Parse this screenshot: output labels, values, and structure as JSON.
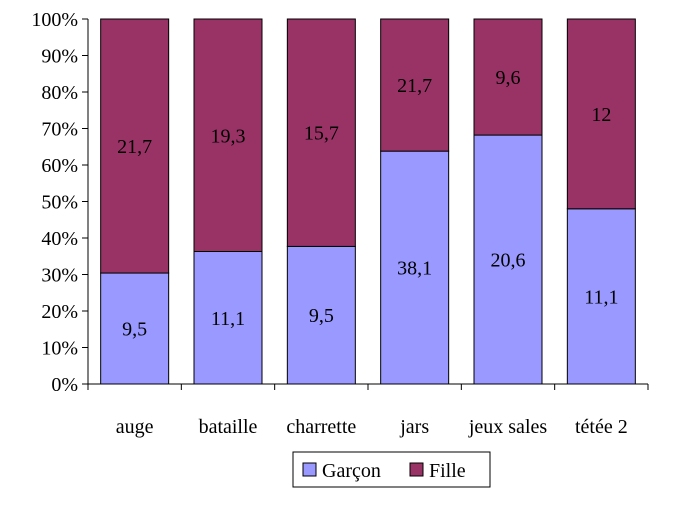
{
  "chart_data": {
    "type": "bar",
    "stacked": true,
    "normalized": true,
    "categories": [
      "auge",
      "bataille",
      "charrette",
      "jars",
      "jeux sales",
      "tétée 2"
    ],
    "series": [
      {
        "name": "Garçon",
        "color": "#9999ff",
        "values": [
          9.5,
          11.1,
          9.5,
          38.1,
          20.6,
          11.1
        ],
        "labels": [
          "9,5",
          "11,1",
          "9,5",
          "38,1",
          "20,6",
          "11,1"
        ],
        "share_percent": [
          30.4,
          36.3,
          37.7,
          63.8,
          68.2,
          48.0
        ]
      },
      {
        "name": "Fille",
        "color": "#993366",
        "values": [
          21.7,
          19.3,
          15.7,
          21.7,
          9.6,
          12
        ],
        "labels": [
          "21,7",
          "19,3",
          "15,7",
          "21,7",
          "9,6",
          "12"
        ],
        "share_percent": [
          69.6,
          63.7,
          62.3,
          36.2,
          31.8,
          52.0
        ]
      }
    ],
    "yticks": [
      "0%",
      "10%",
      "20%",
      "30%",
      "40%",
      "50%",
      "60%",
      "70%",
      "80%",
      "90%",
      "100%"
    ],
    "ylim": [
      0,
      100
    ],
    "grid": false,
    "legend_position": "bottom"
  }
}
